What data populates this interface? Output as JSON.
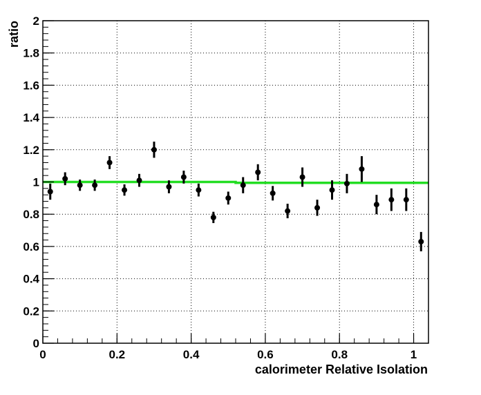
{
  "chart_data": {
    "type": "scatter",
    "title": "",
    "xlabel": "calorimeter Relative Isolation",
    "ylabel": "ratio",
    "xlim": [
      0,
      1.04
    ],
    "ylim": [
      0,
      2
    ],
    "grid": true,
    "x_ticks": [
      {
        "value": 0,
        "label": "0"
      },
      {
        "value": 0.2,
        "label": "0.2"
      },
      {
        "value": 0.4,
        "label": "0.4"
      },
      {
        "value": 0.6,
        "label": "0.6"
      },
      {
        "value": 0.8,
        "label": "0.8"
      },
      {
        "value": 1,
        "label": "1"
      }
    ],
    "y_ticks": [
      {
        "value": 0,
        "label": "0"
      },
      {
        "value": 0.2,
        "label": "0.2"
      },
      {
        "value": 0.4,
        "label": "0.4"
      },
      {
        "value": 0.6,
        "label": "0.6"
      },
      {
        "value": 0.8,
        "label": "0.8"
      },
      {
        "value": 1,
        "label": "1"
      },
      {
        "value": 1.2,
        "label": "1.2"
      },
      {
        "value": 1.4,
        "label": "1.4"
      },
      {
        "value": 1.6,
        "label": "1.6"
      },
      {
        "value": 1.8,
        "label": "1.8"
      },
      {
        "value": 2,
        "label": "2"
      }
    ],
    "points": [
      {
        "x": 0.02,
        "y": 0.94,
        "err": 0.05
      },
      {
        "x": 0.06,
        "y": 1.02,
        "err": 0.04
      },
      {
        "x": 0.1,
        "y": 0.98,
        "err": 0.035
      },
      {
        "x": 0.14,
        "y": 0.98,
        "err": 0.035
      },
      {
        "x": 0.18,
        "y": 1.12,
        "err": 0.04
      },
      {
        "x": 0.22,
        "y": 0.95,
        "err": 0.035
      },
      {
        "x": 0.26,
        "y": 1.01,
        "err": 0.04
      },
      {
        "x": 0.3,
        "y": 1.2,
        "err": 0.05
      },
      {
        "x": 0.34,
        "y": 0.97,
        "err": 0.04
      },
      {
        "x": 0.38,
        "y": 1.03,
        "err": 0.04
      },
      {
        "x": 0.42,
        "y": 0.95,
        "err": 0.04
      },
      {
        "x": 0.46,
        "y": 0.78,
        "err": 0.035
      },
      {
        "x": 0.5,
        "y": 0.9,
        "err": 0.04
      },
      {
        "x": 0.54,
        "y": 0.98,
        "err": 0.05
      },
      {
        "x": 0.58,
        "y": 1.06,
        "err": 0.05
      },
      {
        "x": 0.62,
        "y": 0.93,
        "err": 0.045
      },
      {
        "x": 0.66,
        "y": 0.82,
        "err": 0.045
      },
      {
        "x": 0.7,
        "y": 1.03,
        "err": 0.06
      },
      {
        "x": 0.74,
        "y": 0.84,
        "err": 0.05
      },
      {
        "x": 0.78,
        "y": 0.95,
        "err": 0.06
      },
      {
        "x": 0.82,
        "y": 0.99,
        "err": 0.06
      },
      {
        "x": 0.86,
        "y": 1.08,
        "err": 0.08
      },
      {
        "x": 0.9,
        "y": 0.86,
        "err": 0.06
      },
      {
        "x": 0.94,
        "y": 0.89,
        "err": 0.07
      },
      {
        "x": 0.98,
        "y": 0.89,
        "err": 0.07
      },
      {
        "x": 1.02,
        "y": 0.63,
        "err": 0.06
      }
    ],
    "fit_line": {
      "color": "#22dd22",
      "points": [
        [
          0,
          1.0
        ],
        [
          0.52,
          1.0
        ],
        [
          0.52,
          0.995
        ],
        [
          1.04,
          0.995
        ]
      ]
    },
    "marker_color": "#000000"
  }
}
